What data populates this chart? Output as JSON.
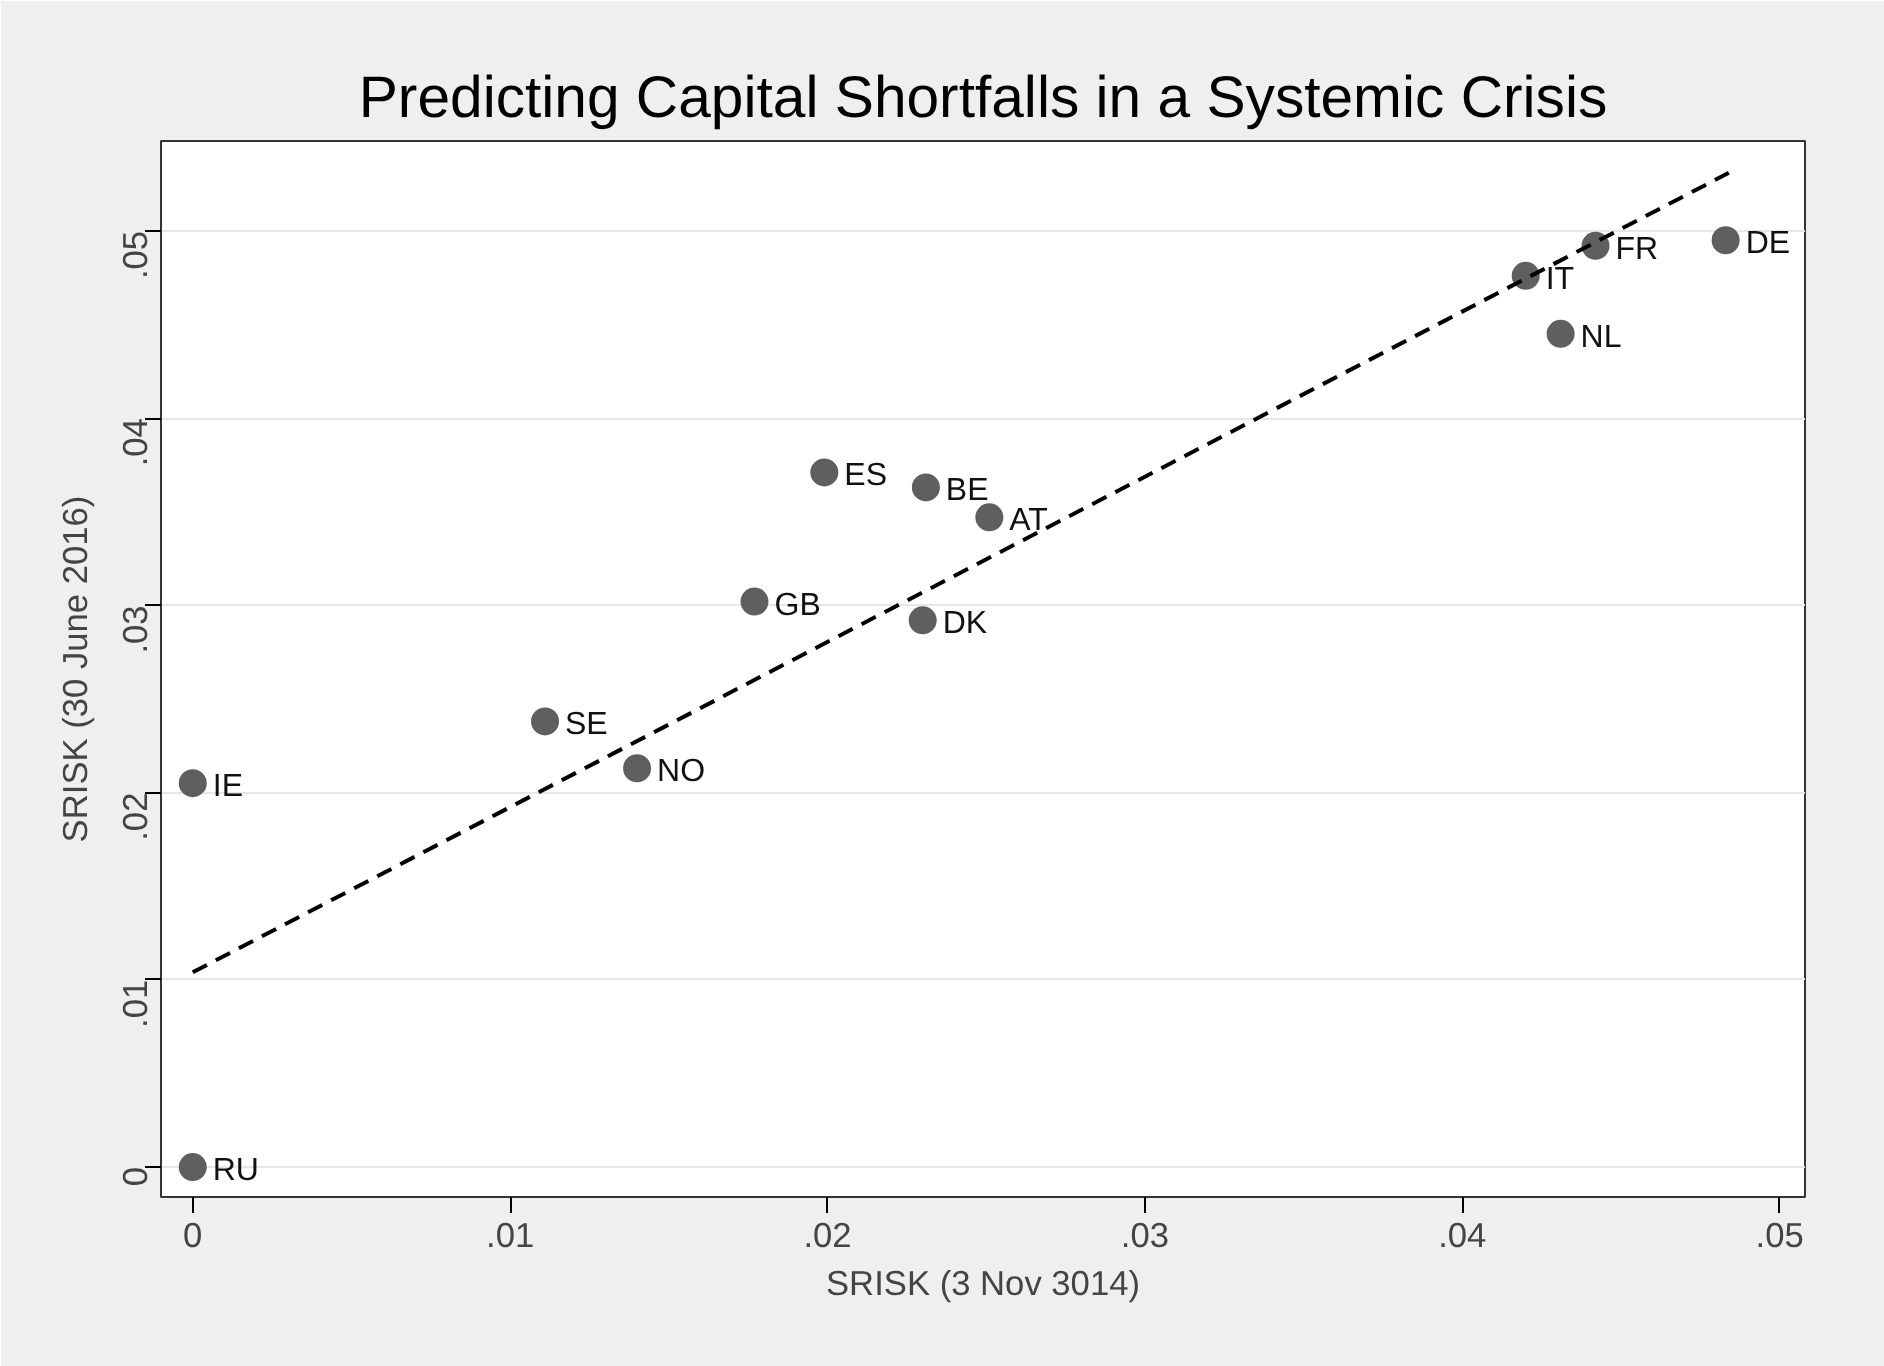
{
  "chart_data": {
    "type": "scatter",
    "title": "Predicting Capital Shortfalls in a Systemic Crisis",
    "xlabel": "SRISK (3 Nov 3014)",
    "ylabel": "SRISK (30 June 2016)",
    "xlim": [
      -0.001,
      0.0508
    ],
    "ylim": [
      -0.0016,
      0.0548
    ],
    "xticks": [
      {
        "value": 0,
        "label": "0"
      },
      {
        "value": 0.01,
        "label": ".01"
      },
      {
        "value": 0.02,
        "label": ".02"
      },
      {
        "value": 0.03,
        "label": ".03"
      },
      {
        "value": 0.04,
        "label": ".04"
      },
      {
        "value": 0.05,
        "label": ".05"
      }
    ],
    "yticks": [
      {
        "value": 0,
        "label": "0"
      },
      {
        "value": 0.01,
        "label": ".01"
      },
      {
        "value": 0.02,
        "label": ".02"
      },
      {
        "value": 0.03,
        "label": ".03"
      },
      {
        "value": 0.04,
        "label": ".04"
      },
      {
        "value": 0.05,
        "label": ".05"
      }
    ],
    "grid": "y",
    "marker": "circle",
    "series": [
      {
        "color": "#5f5f5f",
        "x": [
          0,
          0.0111,
          0.014,
          0.0177,
          0.0199,
          0.0231,
          0.0251,
          0.023,
          0.042,
          0.0442,
          0.0431,
          0.0483,
          0
        ],
        "values": [
          0.0205,
          0.0238,
          0.0213,
          0.0302,
          0.0371,
          0.0363,
          0.0347,
          0.0292,
          0.0476,
          0.0492,
          0.0445,
          0.0495,
          0
        ]
      },
      {
        "type": "line",
        "color": "#000000",
        "line_style": "dashed",
        "marker": "none",
        "x": [
          0,
          0.0484
        ],
        "values": [
          0.0104,
          0.0531
        ]
      }
    ],
    "annotations": [
      {
        "text": "IE",
        "x": 0,
        "y": 0.0205
      },
      {
        "text": "SE",
        "x": 0.0111,
        "y": 0.0238
      },
      {
        "text": "NO",
        "x": 0.014,
        "y": 0.0213
      },
      {
        "text": "GB",
        "x": 0.0177,
        "y": 0.0302
      },
      {
        "text": "ES",
        "x": 0.0199,
        "y": 0.0371
      },
      {
        "text": "BE",
        "x": 0.0231,
        "y": 0.0363
      },
      {
        "text": "AT",
        "x": 0.0251,
        "y": 0.0347
      },
      {
        "text": "DK",
        "x": 0.023,
        "y": 0.0292
      },
      {
        "text": "IT",
        "x": 0.042,
        "y": 0.0476
      },
      {
        "text": "FR",
        "x": 0.0442,
        "y": 0.0492
      },
      {
        "text": "NL",
        "x": 0.0431,
        "y": 0.0445
      },
      {
        "text": "DE",
        "x": 0.0483,
        "y": 0.0495
      },
      {
        "text": "RU",
        "x": 0,
        "y": 0
      }
    ]
  }
}
